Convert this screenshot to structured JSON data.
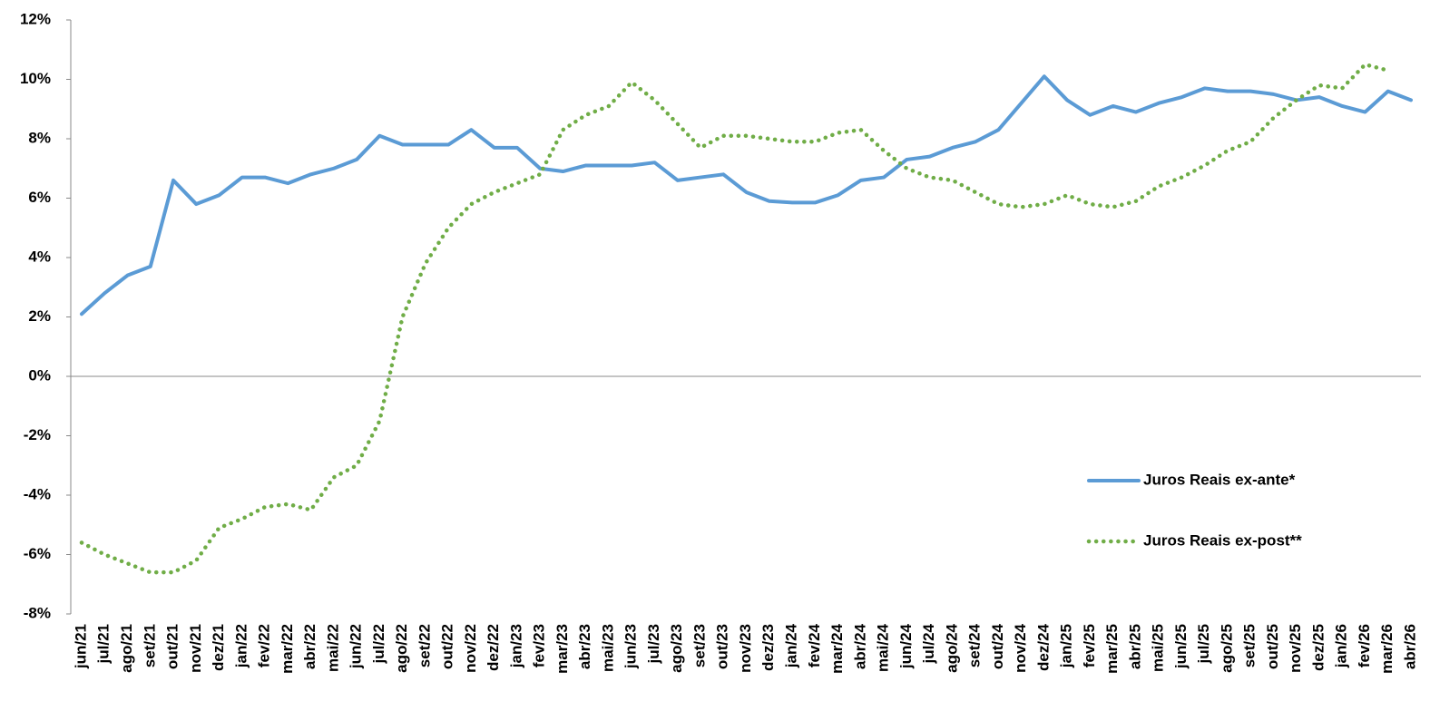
{
  "chart_data": {
    "type": "line",
    "categories": [
      "jun/21",
      "jul/21",
      "ago/21",
      "set/21",
      "out/21",
      "nov/21",
      "dez/21",
      "jan/22",
      "fev/22",
      "mar/22",
      "abr/22",
      "mai/22",
      "jun/22",
      "jul/22",
      "ago/22",
      "set/22",
      "out/22",
      "nov/22",
      "dez/22",
      "jan/23",
      "fev/23",
      "mar/23",
      "abr/23",
      "mai/23",
      "jun/23",
      "jul/23",
      "ago/23",
      "set/23",
      "out/23",
      "nov/23",
      "dez/23",
      "jan/24",
      "fev/24",
      "mar/24",
      "abr/24",
      "mai/24",
      "jun/24",
      "jul/24",
      "ago/24",
      "set/24",
      "out/24",
      "nov/24",
      "dez/24",
      "jan/25",
      "fev/25",
      "mar/25",
      "abr/25",
      "mai/25",
      "jun/25",
      "jul/25",
      "ago/25",
      "set/25",
      "out/25",
      "nov/25",
      "dez/25",
      "jan/26",
      "fev/26",
      "mar/26",
      "abr/26"
    ],
    "series": [
      {
        "name": "Juros Reais ex-ante*",
        "color": "#5b9bd5",
        "dash": "solid",
        "values": [
          2.1,
          2.8,
          3.4,
          3.7,
          6.6,
          5.8,
          6.1,
          6.7,
          6.7,
          6.5,
          6.8,
          7.0,
          7.3,
          8.1,
          7.8,
          7.8,
          7.8,
          8.3,
          7.7,
          7.7,
          7.0,
          6.9,
          7.1,
          7.1,
          7.1,
          7.2,
          6.6,
          6.7,
          6.8,
          6.2,
          5.9,
          5.85,
          5.85,
          6.1,
          6.6,
          6.7,
          7.3,
          7.4,
          7.7,
          7.9,
          8.3,
          9.2,
          10.1,
          9.3,
          8.8,
          9.1,
          8.9,
          9.2,
          9.4,
          9.7,
          9.6,
          9.6,
          9.5,
          9.3,
          9.4,
          9.1,
          8.9,
          9.6,
          9.3
        ]
      },
      {
        "name": "Juros Reais ex-post**",
        "color": "#70ad47",
        "dash": "dotted",
        "values": [
          -5.6,
          -6.0,
          -6.3,
          -6.6,
          -6.6,
          -6.2,
          -5.1,
          -4.8,
          -4.4,
          -4.3,
          -4.5,
          -3.4,
          -3.0,
          -1.5,
          2.0,
          3.8,
          5.0,
          5.8,
          6.2,
          6.5,
          6.8,
          8.3,
          8.8,
          9.1,
          9.9,
          9.3,
          8.5,
          7.7,
          8.1,
          8.1,
          8.0,
          7.9,
          7.9,
          8.2,
          8.3,
          7.6,
          7.0,
          6.7,
          6.6,
          6.2,
          5.8,
          5.7,
          5.8,
          6.1,
          5.8,
          5.7,
          5.9,
          6.4,
          6.7,
          7.1,
          7.6,
          7.9,
          8.7,
          9.3,
          9.8,
          9.7,
          10.5,
          10.3,
          null
        ]
      }
    ],
    "ylim": [
      -8,
      12
    ],
    "yticks": [
      {
        "value": -8,
        "label": "-8%"
      },
      {
        "value": -6,
        "label": "-6%"
      },
      {
        "value": -4,
        "label": "-4%"
      },
      {
        "value": -2,
        "label": "-2%"
      },
      {
        "value": 0,
        "label": "0%"
      },
      {
        "value": 2,
        "label": "2%"
      },
      {
        "value": 4,
        "label": "4%"
      },
      {
        "value": 6,
        "label": "6%"
      },
      {
        "value": 8,
        "label": "8%"
      },
      {
        "value": 10,
        "label": "10%"
      },
      {
        "value": 12,
        "label": "12%"
      }
    ],
    "grid": false,
    "legend": "lower right"
  }
}
